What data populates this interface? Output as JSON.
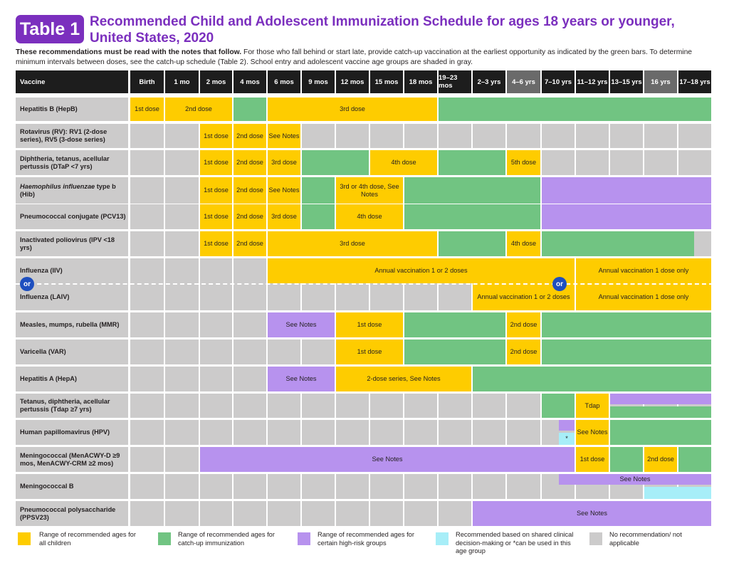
{
  "header": {
    "badge": "Table 1",
    "title": "Recommended Child and Adolescent Immunization Schedule for ages 18 years or younger, United States, 2020",
    "intro_bold": "These recommendations must be read with the notes that follow.",
    "intro_rest": "For those who fall behind or start late, provide catch-up vaccination at the earliest opportunity as indicated by the green bars. To determine minimum intervals between doses, see the catch-up schedule (Table 2). School entry and adolescent vaccine age groups are shaded in gray."
  },
  "columns": {
    "vaccine": "Vaccine",
    "ages": [
      "Birth",
      "1 mo",
      "2 mos",
      "4 mos",
      "6 mos",
      "9 mos",
      "12 mos",
      "15 mos",
      "18 mos",
      "19–23 mos",
      "2–3 yrs",
      "4–6 yrs",
      "7–10 yrs",
      "11–12 yrs",
      "13–15 yrs",
      "16 yrs",
      "17–18 yrs"
    ]
  },
  "vaccines": [
    "Hepatitis B (HepB)",
    "Rotavirus (RV): RV1 (2-dose series), RV5 (3-dose series)",
    "Diphtheria, tetanus, acellular pertussis (DTaP <7 yrs)",
    "Haemophilus influenzae type b (Hib)",
    "Pneumococcal conjugate (PCV13)",
    "Inactivated poliovirus (IPV <18 yrs)",
    "Influenza (IIV)",
    "Influenza (LAIV)",
    "Measles, mumps, rubella (MMR)",
    "Varicella (VAR)",
    "Hepatitis A (HepA)",
    "Tetanus, diphtheria, acellular pertussis (Tdap ≥7 yrs)",
    "Human papillomavirus (HPV)",
    "Meningococcal (MenACWY-D ≥9 mos, MenACWY-CRM ≥2 mos)",
    "Meningococcal B",
    "Pneumococcal polysaccharide (PPSV23)"
  ],
  "labels": {
    "dose1": "1st dose",
    "dose2": "2nd dose",
    "dose3": "3rd dose",
    "dose4": "4th dose",
    "dose5": "5th dose",
    "see_notes": "See Notes",
    "hib_34": "3rd or 4th dose, See Notes",
    "annual_12": "Annual vaccination 1 or 2 doses",
    "annual_1": "Annual vaccination 1 dose only",
    "hepa_series": "2-dose series, See Notes",
    "tdap": "Tdap",
    "or": "or",
    "asterisk": "*"
  },
  "legend": [
    "Range of recommended ages for all children",
    "Range of recommended ages for catch-up immunization",
    "Range of recommended ages for certain high-risk groups",
    "Recommended based on shared clinical decision-making or *can be used in this age group",
    "No recommendation/ not applicable"
  ],
  "colors": {
    "yellow": "#fecc00",
    "green": "#71c482",
    "purple": "#b792ee",
    "cyan": "#a7eef8",
    "gray": "#cccbcb",
    "title": "#7b2fbe"
  }
}
